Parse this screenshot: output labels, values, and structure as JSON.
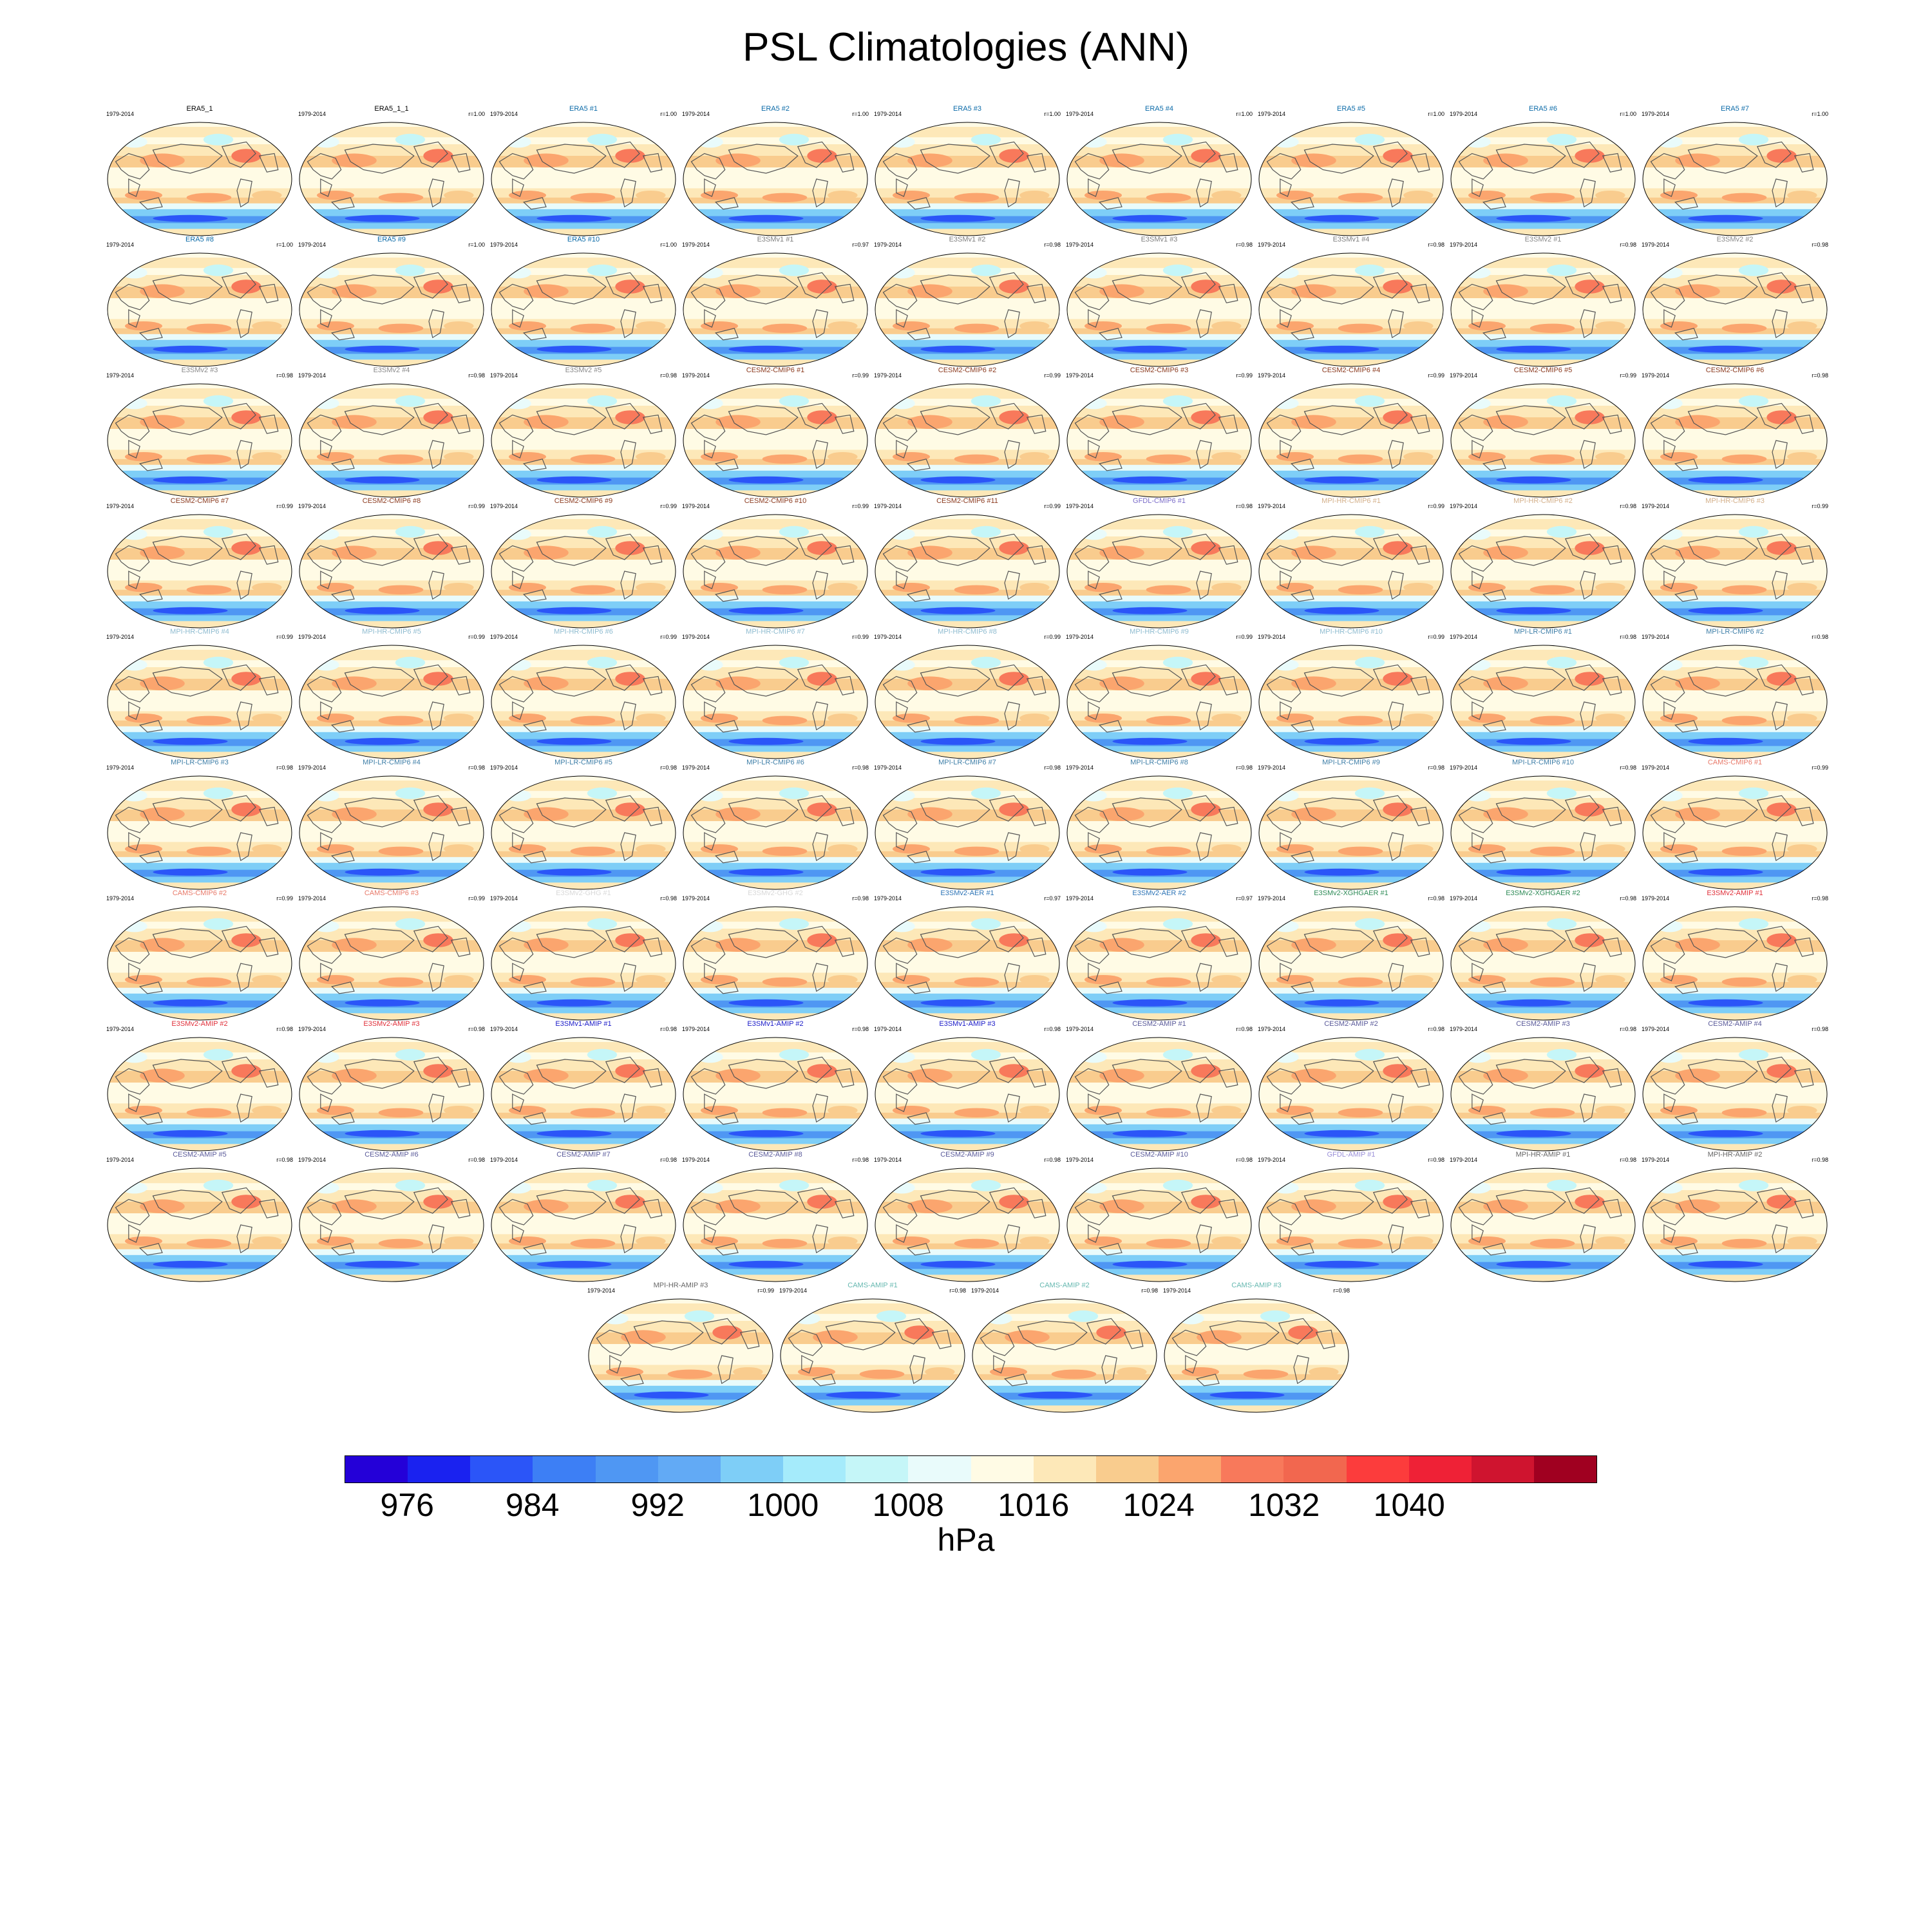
{
  "page": {
    "title": "PSL Climatologies (ANN)"
  },
  "chart_data": {
    "type": "heatmap",
    "title": "PSL Climatologies (ANN)",
    "period": "1979-2014",
    "projection": "robinson",
    "colorbar": {
      "unit": "hPa",
      "ticks": [
        976,
        984,
        992,
        1000,
        1008,
        1016,
        1024,
        1032,
        1040
      ],
      "levels": [
        972,
        976,
        980,
        984,
        988,
        992,
        996,
        1000,
        1004,
        1008,
        1012,
        1016,
        1020,
        1024,
        1028,
        1032,
        1036,
        1040,
        1044,
        1048
      ],
      "colors": [
        "#2400d8",
        "#1a22f0",
        "#2b55f8",
        "#3d7ff5",
        "#4f97f3",
        "#62aaf5",
        "#7ecef7",
        "#a5ebfb",
        "#c5f6f8",
        "#e9fbfb",
        "#fffbe5",
        "#fde8b8",
        "#f9cc8e",
        "#fba56e",
        "#f8795b",
        "#f2674f",
        "#fc3c3c",
        "#ef2136",
        "#cf142f",
        "#a00020"
      ]
    },
    "panels": [
      {
        "name": "ERA5_1",
        "corr": "",
        "color": "#000000"
      },
      {
        "name": "ERA5_1_1",
        "corr": "r=1.00",
        "color": "#000000"
      },
      {
        "name": "ERA5 #1",
        "corr": "r=1.00",
        "color": "#0a6aa8"
      },
      {
        "name": "ERA5 #2",
        "corr": "r=1.00",
        "color": "#0a6aa8"
      },
      {
        "name": "ERA5 #3",
        "corr": "r=1.00",
        "color": "#0a6aa8"
      },
      {
        "name": "ERA5 #4",
        "corr": "r=1.00",
        "color": "#0a6aa8"
      },
      {
        "name": "ERA5 #5",
        "corr": "r=1.00",
        "color": "#0a6aa8"
      },
      {
        "name": "ERA5 #6",
        "corr": "r=1.00",
        "color": "#0a6aa8"
      },
      {
        "name": "ERA5 #7",
        "corr": "r=1.00",
        "color": "#0a6aa8"
      },
      {
        "name": "ERA5 #8",
        "corr": "r=1.00",
        "color": "#0a6aa8"
      },
      {
        "name": "ERA5 #9",
        "corr": "r=1.00",
        "color": "#0a6aa8"
      },
      {
        "name": "ERA5 #10",
        "corr": "r=1.00",
        "color": "#0a6aa8"
      },
      {
        "name": "E3SMv1 #1",
        "corr": "r=0.97",
        "color": "#7f7f7f"
      },
      {
        "name": "E3SMv1 #2",
        "corr": "r=0.98",
        "color": "#7f7f7f"
      },
      {
        "name": "E3SMv1 #3",
        "corr": "r=0.98",
        "color": "#7f7f7f"
      },
      {
        "name": "E3SMv1 #4",
        "corr": "r=0.98",
        "color": "#7f7f7f"
      },
      {
        "name": "E3SMv2 #1",
        "corr": "r=0.98",
        "color": "#8a8a8a"
      },
      {
        "name": "E3SMv2 #2",
        "corr": "r=0.98",
        "color": "#8a8a8a"
      },
      {
        "name": "E3SMv2 #3",
        "corr": "r=0.98",
        "color": "#8a8a8a"
      },
      {
        "name": "E3SMv2 #4",
        "corr": "r=0.98",
        "color": "#8a8a8a"
      },
      {
        "name": "E3SMv2 #5",
        "corr": "r=0.98",
        "color": "#8a8a8a"
      },
      {
        "name": "CESM2-CMIP6 #1",
        "corr": "r=0.99",
        "color": "#8b3a1e"
      },
      {
        "name": "CESM2-CMIP6 #2",
        "corr": "r=0.99",
        "color": "#8b3a1e"
      },
      {
        "name": "CESM2-CMIP6 #3",
        "corr": "r=0.99",
        "color": "#8b3a1e"
      },
      {
        "name": "CESM2-CMIP6 #4",
        "corr": "r=0.99",
        "color": "#8b3a1e"
      },
      {
        "name": "CESM2-CMIP6 #5",
        "corr": "r=0.99",
        "color": "#8b3a1e"
      },
      {
        "name": "CESM2-CMIP6 #6",
        "corr": "r=0.98",
        "color": "#8b3a1e"
      },
      {
        "name": "CESM2-CMIP6 #7",
        "corr": "r=0.99",
        "color": "#8b3a1e"
      },
      {
        "name": "CESM2-CMIP6 #8",
        "corr": "r=0.99",
        "color": "#8b3a1e"
      },
      {
        "name": "CESM2-CMIP6 #9",
        "corr": "r=0.99",
        "color": "#8b3a1e"
      },
      {
        "name": "CESM2-CMIP6 #10",
        "corr": "r=0.99",
        "color": "#8b3a1e"
      },
      {
        "name": "CESM2-CMIP6 #11",
        "corr": "r=0.99",
        "color": "#8b3a1e"
      },
      {
        "name": "GFDL-CMIP6 #1",
        "corr": "r=0.98",
        "color": "#7b6cc9"
      },
      {
        "name": "MPI-HR-CMIP6 #1",
        "corr": "r=0.99",
        "color": "#d4b08a"
      },
      {
        "name": "MPI-HR-CMIP6 #2",
        "corr": "r=0.98",
        "color": "#d4b08a"
      },
      {
        "name": "MPI-HR-CMIP6 #3",
        "corr": "r=0.99",
        "color": "#d4b08a"
      },
      {
        "name": "MPI-HR-CMIP6 #4",
        "corr": "r=0.99",
        "color": "#8fbcd0"
      },
      {
        "name": "MPI-HR-CMIP6 #5",
        "corr": "r=0.99",
        "color": "#8fbcd0"
      },
      {
        "name": "MPI-HR-CMIP6 #6",
        "corr": "r=0.99",
        "color": "#8fbcd0"
      },
      {
        "name": "MPI-HR-CMIP6 #7",
        "corr": "r=0.99",
        "color": "#8fbcd0"
      },
      {
        "name": "MPI-HR-CMIP6 #8",
        "corr": "r=0.99",
        "color": "#8fbcd0"
      },
      {
        "name": "MPI-HR-CMIP6 #9",
        "corr": "r=0.99",
        "color": "#8fbcd0"
      },
      {
        "name": "MPI-HR-CMIP6 #10",
        "corr": "r=0.99",
        "color": "#8fbcd0"
      },
      {
        "name": "MPI-LR-CMIP6 #1",
        "corr": "r=0.98",
        "color": "#3f7fa8"
      },
      {
        "name": "MPI-LR-CMIP6 #2",
        "corr": "r=0.98",
        "color": "#3f7fa8"
      },
      {
        "name": "MPI-LR-CMIP6 #3",
        "corr": "r=0.98",
        "color": "#3f7fa8"
      },
      {
        "name": "MPI-LR-CMIP6 #4",
        "corr": "r=0.98",
        "color": "#3f7fa8"
      },
      {
        "name": "MPI-LR-CMIP6 #5",
        "corr": "r=0.98",
        "color": "#3f7fa8"
      },
      {
        "name": "MPI-LR-CMIP6 #6",
        "corr": "r=0.98",
        "color": "#3f7fa8"
      },
      {
        "name": "MPI-LR-CMIP6 #7",
        "corr": "r=0.98",
        "color": "#3f7fa8"
      },
      {
        "name": "MPI-LR-CMIP6 #8",
        "corr": "r=0.98",
        "color": "#3f7fa8"
      },
      {
        "name": "MPI-LR-CMIP6 #9",
        "corr": "r=0.98",
        "color": "#3f7fa8"
      },
      {
        "name": "MPI-LR-CMIP6 #10",
        "corr": "r=0.98",
        "color": "#3f7fa8"
      },
      {
        "name": "CAMS-CMIP6 #1",
        "corr": "r=0.99",
        "color": "#e87a6a"
      },
      {
        "name": "CAMS-CMIP6 #2",
        "corr": "r=0.99",
        "color": "#e87a6a"
      },
      {
        "name": "CAMS-CMIP6 #3",
        "corr": "r=0.99",
        "color": "#e87a6a"
      },
      {
        "name": "E3SMv2-GHG #1",
        "corr": "r=0.98",
        "color": "#d9d9d9"
      },
      {
        "name": "E3SMv2-GHG #2",
        "corr": "r=0.98",
        "color": "#d9d9d9"
      },
      {
        "name": "E3SMv2-AER #1",
        "corr": "r=0.97",
        "color": "#2d74b6"
      },
      {
        "name": "E3SMv2-AER #2",
        "corr": "r=0.97",
        "color": "#2d74b6"
      },
      {
        "name": "E3SMv2-XGHGAER #1",
        "corr": "r=0.98",
        "color": "#2e8b57"
      },
      {
        "name": "E3SMv2-XGHGAER #2",
        "corr": "r=0.98",
        "color": "#2e8b57"
      },
      {
        "name": "E3SMv2-AMIP #1",
        "corr": "r=0.98",
        "color": "#e0303a"
      },
      {
        "name": "E3SMv2-AMIP #2",
        "corr": "r=0.98",
        "color": "#e0303a"
      },
      {
        "name": "E3SMv2-AMIP #3",
        "corr": "r=0.98",
        "color": "#e0303a"
      },
      {
        "name": "E3SMv1-AMIP #1",
        "corr": "r=0.98",
        "color": "#1a1ac8"
      },
      {
        "name": "E3SMv1-AMIP #2",
        "corr": "r=0.98",
        "color": "#1a1ac8"
      },
      {
        "name": "E3SMv1-AMIP #3",
        "corr": "r=0.98",
        "color": "#1a1ac8"
      },
      {
        "name": "CESM2-AMIP #1",
        "corr": "r=0.98",
        "color": "#5a5a9a"
      },
      {
        "name": "CESM2-AMIP #2",
        "corr": "r=0.98",
        "color": "#5a5a9a"
      },
      {
        "name": "CESM2-AMIP #3",
        "corr": "r=0.98",
        "color": "#5a5a9a"
      },
      {
        "name": "CESM2-AMIP #4",
        "corr": "r=0.98",
        "color": "#5a5a9a"
      },
      {
        "name": "CESM2-AMIP #5",
        "corr": "r=0.98",
        "color": "#5a5a9a"
      },
      {
        "name": "CESM2-AMIP #6",
        "corr": "r=0.98",
        "color": "#5a5a9a"
      },
      {
        "name": "CESM2-AMIP #7",
        "corr": "r=0.98",
        "color": "#5a5a9a"
      },
      {
        "name": "CESM2-AMIP #8",
        "corr": "r=0.98",
        "color": "#5a5a9a"
      },
      {
        "name": "CESM2-AMIP #9",
        "corr": "r=0.98",
        "color": "#5a5a9a"
      },
      {
        "name": "CESM2-AMIP #10",
        "corr": "r=0.98",
        "color": "#5a5a9a"
      },
      {
        "name": "GFDL-AMIP #1",
        "corr": "r=0.98",
        "color": "#9a8fd8"
      },
      {
        "name": "MPI-HR-AMIP #1",
        "corr": "r=0.98",
        "color": "#666666"
      },
      {
        "name": "MPI-HR-AMIP #2",
        "corr": "r=0.98",
        "color": "#666666"
      },
      {
        "name": "MPI-HR-AMIP #3",
        "corr": "r=0.99",
        "color": "#666666"
      },
      {
        "name": "CAMS-AMIP #1",
        "corr": "r=0.98",
        "color": "#66b8b0"
      },
      {
        "name": "CAMS-AMIP #2",
        "corr": "r=0.98",
        "color": "#66b8b0"
      },
      {
        "name": "CAMS-AMIP #3",
        "corr": "r=0.98",
        "color": "#66b8b0"
      }
    ]
  }
}
